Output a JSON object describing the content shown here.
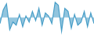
{
  "chart_data": {
    "type": "area",
    "categories": [
      null,
      null,
      null,
      null,
      null,
      null,
      null,
      null,
      null,
      null,
      null,
      null,
      null,
      null,
      null,
      null,
      null,
      null,
      null,
      null,
      null,
      null,
      null,
      null,
      null,
      null,
      null,
      null,
      null,
      null
    ],
    "values": [
      -0.4,
      0.5,
      0.9,
      -0.8,
      -0.3,
      -0.5,
      0.2,
      -0.6,
      0.1,
      -0.3,
      0.4,
      -0.2,
      0.6,
      -0.5,
      0.3,
      0.1,
      -0.4,
      1.0,
      0.8,
      -0.9,
      0.6,
      0.4,
      -0.7,
      0.2,
      -0.5,
      -0.3,
      0.4,
      -0.6,
      0.3,
      -0.4
    ],
    "color": "#4a9fc8",
    "ylim": [
      -1.15,
      1.15
    ],
    "grid": false,
    "tick_labels": false
  }
}
